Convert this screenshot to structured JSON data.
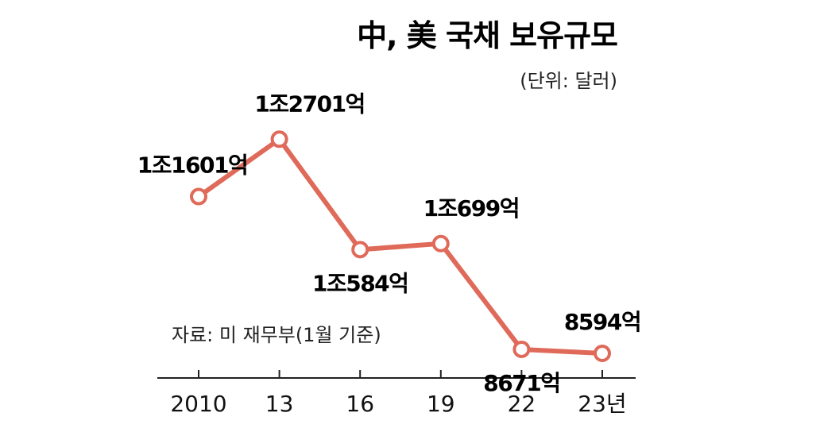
{
  "chart_data": {
    "type": "line",
    "title": "中, 美 국채 보유규모",
    "unit_note": "(단위: 달러)",
    "source": "자료: 미 재무부(1월 기준)",
    "categories": [
      "2010",
      "13",
      "16",
      "19",
      "22",
      "23년"
    ],
    "values": [
      11601,
      12701,
      10584,
      10699,
      8671,
      8594
    ],
    "data_labels": [
      "1조1601억",
      "1조2701억",
      "1조584억",
      "1조699억",
      "8671억",
      "8594억"
    ],
    "line_color": "#e06a5a",
    "ylim": [
      7300,
      14000
    ],
    "grid": false
  }
}
